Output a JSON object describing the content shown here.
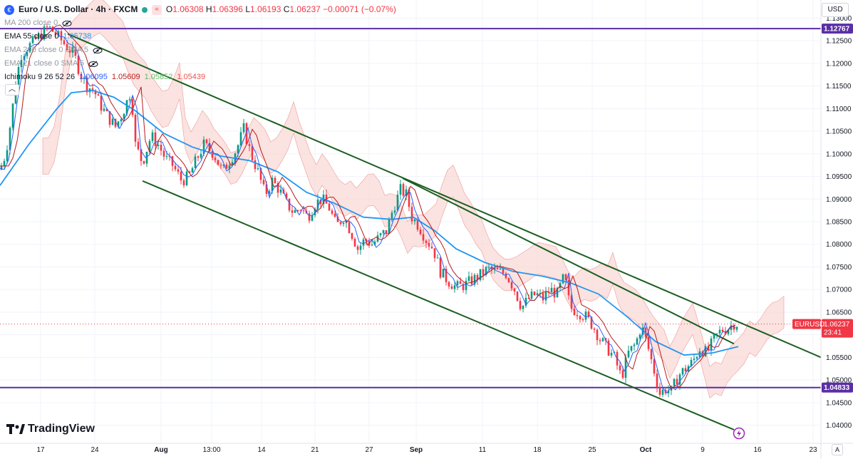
{
  "header": {
    "symbol_title": "Euro / U.S. Dollar · 4h · FXCM",
    "badge": "≈",
    "ohlc": {
      "o_label": "O",
      "o": "1.06308",
      "h_label": "H",
      "h": "1.06396",
      "l_label": "L",
      "l": "1.06193",
      "c_label": "C",
      "c": "1.06237",
      "change": "−0.00071 (−0.07%)"
    }
  },
  "indicators": [
    {
      "label": "MA 200 close 0",
      "value": "",
      "color": "#9598a1"
    },
    {
      "label": "EMA 55 close 0",
      "value": "1.05738",
      "color": "#2196f3"
    },
    {
      "label": "EMA 200 close 0 SMA 5",
      "value": "",
      "color": "#9598a1"
    },
    {
      "label": "EMA 21 close 0 SMA 5",
      "value": "",
      "color": "#9598a1"
    }
  ],
  "ichimoku": {
    "label": "Ichimoku 9 26 52 26",
    "values": [
      {
        "v": "1.06095",
        "color": "#2962ff"
      },
      {
        "v": "1.05609",
        "color": "#b71c1c"
      },
      {
        "v": "1.05852",
        "color": "#66bb6a"
      },
      {
        "v": "1.05439",
        "color": "#ef5350"
      }
    ]
  },
  "currency_button": "USD",
  "collapse_icon": "chevron-up-icon",
  "brand": "TradingView",
  "price_tags": {
    "upper_level": "1.12767",
    "lower_level": "1.04833",
    "symbol": "EURUSD",
    "last_price": "1.06237",
    "countdown": "23:41"
  },
  "chart_data": {
    "type": "candlestick",
    "symbol": "EURUSD",
    "timeframe": "4h",
    "ylim": [
      1.036,
      1.134
    ],
    "y_ticks": [
      "1.13000",
      "1.12500",
      "1.12000",
      "1.11500",
      "1.11000",
      "1.10500",
      "1.10000",
      "1.09500",
      "1.09000",
      "1.08500",
      "1.08000",
      "1.07500",
      "1.07000",
      "1.06500",
      "1.06000",
      "1.05500",
      "1.05000",
      "1.04500",
      "1.04000"
    ],
    "x_ticks": [
      "17",
      "24",
      "Aug",
      "13:00",
      "14",
      "21",
      "27",
      "Sep",
      "11",
      "18",
      "25",
      "Oct",
      "9",
      "16",
      "23"
    ],
    "horizontal_levels": [
      1.12767,
      1.04833
    ],
    "price_path": [
      [
        0,
        1.0965
      ],
      [
        8,
        1.1
      ],
      [
        16,
        1.108
      ],
      [
        22,
        1.116
      ],
      [
        30,
        1.122
      ],
      [
        42,
        1.124
      ],
      [
        55,
        1.126
      ],
      [
        68,
        1.128
      ],
      [
        80,
        1.1262
      ],
      [
        92,
        1.124
      ],
      [
        104,
        1.122
      ],
      [
        112,
        1.118
      ],
      [
        122,
        1.115
      ],
      [
        132,
        1.114
      ],
      [
        140,
        1.111
      ],
      [
        152,
        1.108
      ],
      [
        162,
        1.106
      ],
      [
        172,
        1.109
      ],
      [
        184,
        1.114
      ],
      [
        190,
        1.102
      ],
      [
        200,
        1.098
      ],
      [
        212,
        1.104
      ],
      [
        222,
        1.102
      ],
      [
        232,
        1.099
      ],
      [
        242,
        1.0975
      ],
      [
        255,
        1.094
      ],
      [
        265,
        1.095
      ],
      [
        275,
        1.0985
      ],
      [
        286,
        1.102
      ],
      [
        300,
        1.1
      ],
      [
        312,
        1.096
      ],
      [
        322,
        1.0985
      ],
      [
        332,
        1.101
      ],
      [
        342,
        1.1055
      ],
      [
        352,
        1.1
      ],
      [
        362,
        1.096
      ],
      [
        372,
        1.091
      ],
      [
        382,
        1.094
      ],
      [
        392,
        1.092
      ],
      [
        402,
        1.089
      ],
      [
        412,
        1.087
      ],
      [
        422,
        1.088
      ],
      [
        432,
        1.086
      ],
      [
        442,
        1.089
      ],
      [
        452,
        1.09
      ],
      [
        462,
        1.088
      ],
      [
        472,
        1.084
      ],
      [
        482,
        1.086
      ],
      [
        492,
        1.083
      ],
      [
        502,
        1.079
      ],
      [
        512,
        1.081
      ],
      [
        522,
        1.08
      ],
      [
        532,
        1.0815
      ],
      [
        542,
        1.083
      ],
      [
        552,
        1.088
      ],
      [
        562,
        1.092
      ],
      [
        570,
        1.091
      ],
      [
        578,
        1.086
      ],
      [
        588,
        1.084
      ],
      [
        598,
        1.081
      ],
      [
        608,
        1.079
      ],
      [
        618,
        1.074
      ],
      [
        628,
        1.072
      ],
      [
        640,
        1.0705
      ],
      [
        652,
        1.071
      ],
      [
        662,
        1.072
      ],
      [
        672,
        1.073
      ],
      [
        684,
        1.0745
      ],
      [
        696,
        1.074
      ],
      [
        710,
        1.0735
      ],
      [
        722,
        1.07
      ],
      [
        732,
        1.066
      ],
      [
        742,
        1.068
      ],
      [
        752,
        1.069
      ],
      [
        762,
        1.068
      ],
      [
        772,
        1.07
      ],
      [
        782,
        1.069
      ],
      [
        792,
        1.073
      ],
      [
        800,
        1.066
      ],
      [
        812,
        1.065
      ],
      [
        822,
        1.064
      ],
      [
        832,
        1.062
      ],
      [
        842,
        1.059
      ],
      [
        852,
        1.057
      ],
      [
        862,
        1.055
      ],
      [
        872,
        1.0505
      ],
      [
        882,
        1.056
      ],
      [
        892,
        1.058
      ],
      [
        900,
        1.062
      ],
      [
        908,
        1.058
      ],
      [
        918,
        1.052
      ],
      [
        926,
        1.047
      ],
      [
        934,
        1.048
      ],
      [
        942,
        1.0475
      ],
      [
        952,
        1.051
      ],
      [
        962,
        1.0525
      ],
      [
        972,
        1.054
      ],
      [
        982,
        1.057
      ],
      [
        992,
        1.056
      ],
      [
        1002,
        1.059
      ],
      [
        1012,
        1.061
      ],
      [
        1022,
        1.0615
      ],
      [
        1030,
        1.0625
      ],
      [
        1036,
        1.06237
      ]
    ],
    "series": [
      {
        "name": "EMA 55",
        "color": "#2196f3",
        "points": [
          [
            0,
            1.093
          ],
          [
            40,
            1.102
          ],
          [
            80,
            1.11
          ],
          [
            100,
            1.1135
          ],
          [
            130,
            1.114
          ],
          [
            160,
            1.1125
          ],
          [
            190,
            1.1095
          ],
          [
            230,
            1.1045
          ],
          [
            270,
            1.1015
          ],
          [
            310,
            1.0995
          ],
          [
            350,
            1.0985
          ],
          [
            390,
            1.096
          ],
          [
            430,
            1.0915
          ],
          [
            470,
            1.089
          ],
          [
            510,
            1.086
          ],
          [
            550,
            1.0855
          ],
          [
            580,
            1.086
          ],
          [
            610,
            1.083
          ],
          [
            640,
            1.079
          ],
          [
            680,
            1.076
          ],
          [
            720,
            1.074
          ],
          [
            760,
            1.073
          ],
          [
            800,
            1.0715
          ],
          [
            840,
            1.069
          ],
          [
            880,
            1.064
          ],
          [
            920,
            1.0585
          ],
          [
            960,
            1.0555
          ],
          [
            1000,
            1.056
          ],
          [
            1036,
            1.05738
          ]
        ]
      }
    ],
    "trend_lines": [
      {
        "from": [
          95,
          1.1265
        ],
        "to": [
          1152,
          1.055
        ]
      },
      {
        "from": [
          200,
          1.094
        ],
        "to": [
          1030,
          1.039
        ]
      },
      {
        "from": [
          565,
          1.0946
        ],
        "to": [
          1030,
          1.058
        ]
      }
    ]
  }
}
